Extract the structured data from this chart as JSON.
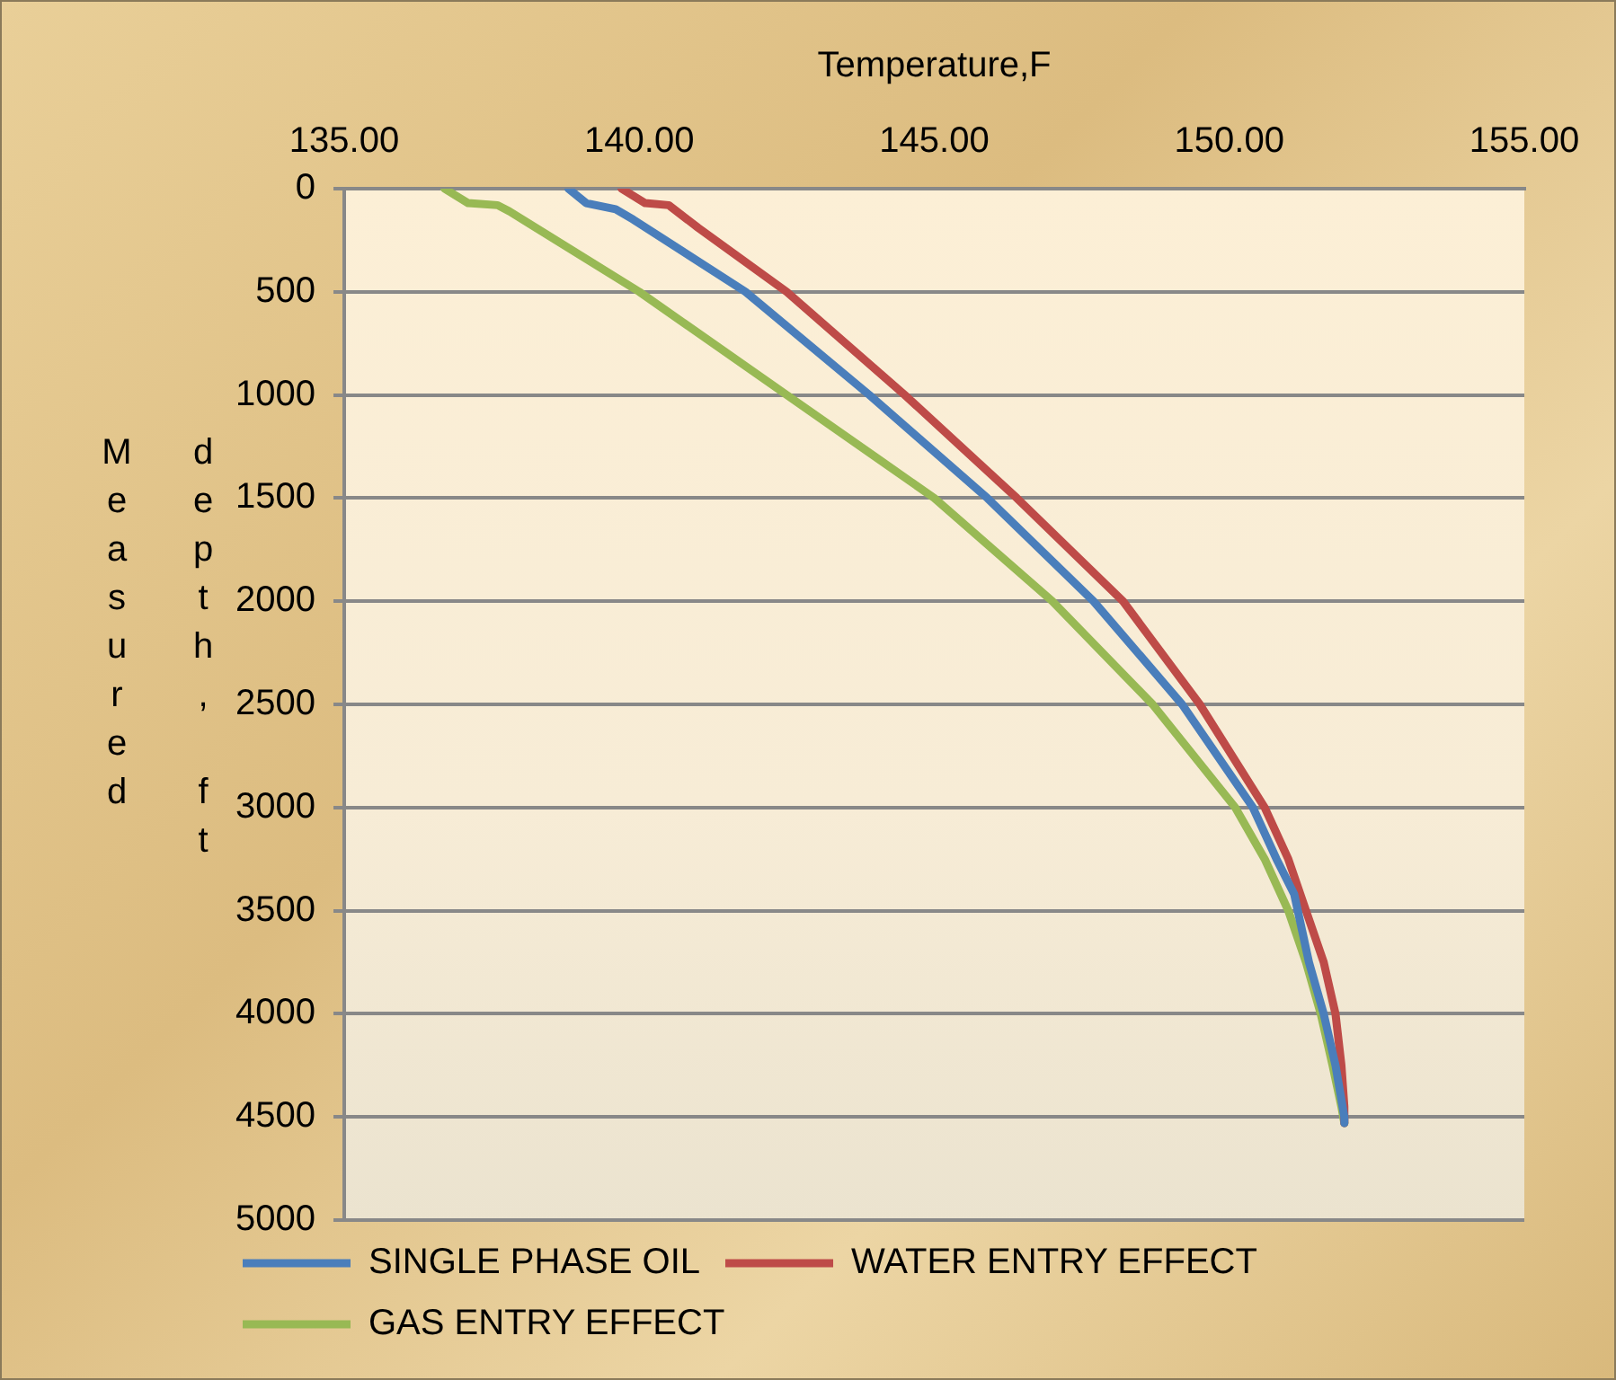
{
  "chart_data": {
    "type": "line",
    "xlabel": "Temperature,F",
    "ylabel": "Measured depth, ft",
    "xlim": [
      135,
      155
    ],
    "xticks": [
      {
        "value": 135,
        "label": "135.00"
      },
      {
        "value": 140,
        "label": "140.00"
      },
      {
        "value": 145,
        "label": "145.00"
      },
      {
        "value": 150,
        "label": "150.00"
      },
      {
        "value": 155,
        "label": "155.00"
      }
    ],
    "ylim": [
      5000,
      0
    ],
    "yticks": [
      0,
      500,
      1000,
      1500,
      2000,
      2500,
      3000,
      3500,
      4000,
      4500,
      5000
    ],
    "grid": "y",
    "legend": "bottom",
    "marker": "none",
    "line_style": "solid",
    "series": [
      {
        "name": "SINGLE PHASE OIL",
        "color": "#4a7ebb",
        "x": [
          138.8,
          139.1,
          139.6,
          139.9,
          141.8,
          143.9,
          145.9,
          147.7,
          149.2,
          150.4,
          150.8,
          151.1,
          151.35,
          151.6,
          151.8,
          151.95,
          151.95
        ],
        "values": [
          0,
          70,
          100,
          150,
          500,
          1000,
          1500,
          2000,
          2500,
          3000,
          3250,
          3420,
          3750,
          4000,
          4250,
          4500,
          4530
        ]
      },
      {
        "name": "WATER ENTRY EFFECT",
        "color": "#be4b48",
        "x": [
          139.7,
          140.1,
          140.5,
          141.0,
          142.5,
          144.5,
          146.4,
          148.2,
          149.5,
          150.6,
          151.0,
          151.3,
          151.6,
          151.8,
          151.9,
          151.95,
          151.95
        ],
        "values": [
          0,
          70,
          80,
          190,
          500,
          1000,
          1500,
          2000,
          2500,
          3000,
          3250,
          3500,
          3750,
          4000,
          4250,
          4450,
          4530
        ]
      },
      {
        "name": "GAS ENTRY EFFECT",
        "color": "#98b954",
        "x": [
          136.7,
          137.1,
          137.6,
          137.8,
          140.0,
          142.5,
          145.0,
          147.0,
          148.7,
          150.1,
          150.6,
          151.0,
          151.3,
          151.55,
          151.75,
          151.9,
          151.95
        ],
        "values": [
          0,
          70,
          80,
          110,
          500,
          1000,
          1500,
          2000,
          2500,
          3000,
          3250,
          3500,
          3750,
          4000,
          4250,
          4450,
          4530
        ]
      }
    ]
  }
}
